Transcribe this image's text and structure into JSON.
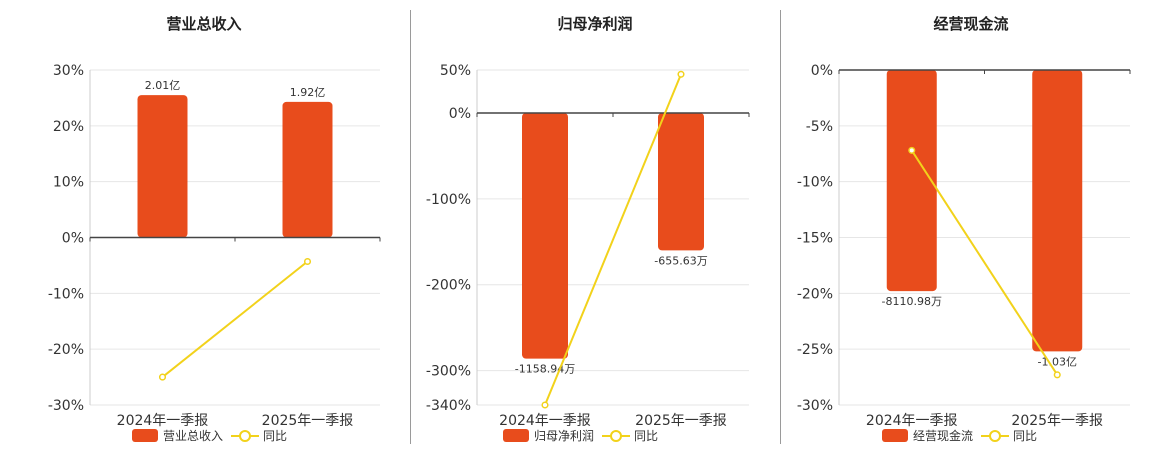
{
  "colors": {
    "bar": "#e84c1c",
    "line": "#f2d21b",
    "axis": "#444444",
    "grid": "#e6e6e6"
  },
  "chart_data": [
    {
      "type": "bar",
      "title": "营业总收入",
      "categories": [
        "2024年一季报",
        "2025年一季报"
      ],
      "series": [
        {
          "name": "营业总收入",
          "type": "bar",
          "values": [
            25.5,
            24.3
          ],
          "labels": [
            "2.01亿",
            "1.92亿"
          ]
        },
        {
          "name": "同比",
          "type": "line",
          "values": [
            -25.0,
            -4.3
          ]
        }
      ],
      "ylim": [
        -30,
        30
      ],
      "yticks": [
        30,
        20,
        10,
        0,
        -10,
        -20,
        -30
      ],
      "ytick_labels": [
        "30%",
        "20%",
        "10%",
        "0%",
        "-10%",
        "-20%",
        "-30%"
      ],
      "grid": true,
      "legend": "bottom"
    },
    {
      "type": "bar",
      "title": "归母净利润",
      "categories": [
        "2024年一季报",
        "2025年一季报"
      ],
      "series": [
        {
          "name": "归母净利润",
          "type": "bar",
          "values": [
            -286,
            -160
          ],
          "labels": [
            "-1158.94万",
            "-655.63万"
          ]
        },
        {
          "name": "同比",
          "type": "line",
          "values": [
            -340,
            45
          ]
        }
      ],
      "ylim": [
        -340,
        50
      ],
      "yticks": [
        50,
        0,
        -100,
        -200,
        -300,
        -340
      ],
      "ytick_labels": [
        "50%",
        "0%",
        "-100%",
        "-200%",
        "-300%",
        "-340%"
      ],
      "grid": true,
      "legend": "bottom"
    },
    {
      "type": "bar",
      "title": "经营现金流",
      "categories": [
        "2024年一季报",
        "2025年一季报"
      ],
      "series": [
        {
          "name": "经营现金流",
          "type": "bar",
          "values": [
            -19.8,
            -25.2
          ],
          "labels": [
            "-8110.98万",
            "-1.03亿"
          ]
        },
        {
          "name": "同比",
          "type": "line",
          "values": [
            -7.2,
            -27.3
          ]
        }
      ],
      "ylim": [
        -30,
        0
      ],
      "yticks": [
        0,
        -5,
        -10,
        -15,
        -20,
        -25,
        -30
      ],
      "ytick_labels": [
        "0%",
        "-5%",
        "-10%",
        "-15%",
        "-20%",
        "-25%",
        "-30%"
      ],
      "grid": true,
      "legend": "bottom"
    }
  ]
}
